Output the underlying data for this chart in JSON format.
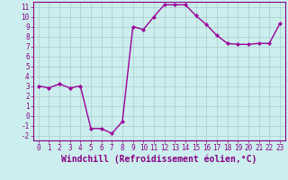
{
  "x": [
    0,
    1,
    2,
    3,
    4,
    5,
    6,
    7,
    8,
    9,
    10,
    11,
    12,
    13,
    14,
    15,
    16,
    17,
    18,
    19,
    20,
    21,
    22,
    23
  ],
  "y": [
    3.0,
    2.8,
    3.2,
    2.8,
    3.0,
    -1.3,
    -1.3,
    -1.8,
    -0.6,
    9.0,
    8.7,
    10.0,
    11.2,
    11.2,
    11.2,
    10.1,
    9.2,
    8.1,
    7.3,
    7.2,
    7.2,
    7.3,
    7.3,
    9.3
  ],
  "line_color": "#990099",
  "marker": "D",
  "marker_size": 2.0,
  "bg_color": "#cceeee",
  "grid_color": "#aacccc",
  "xlabel": "Windchill (Refroidissement éolien,°C)",
  "ylim": [
    -2.5,
    11.5
  ],
  "xlim": [
    -0.5,
    23.5
  ],
  "yticks": [
    -2,
    -1,
    0,
    1,
    2,
    3,
    4,
    5,
    6,
    7,
    8,
    9,
    10,
    11
  ],
  "xticks": [
    0,
    1,
    2,
    3,
    4,
    5,
    6,
    7,
    8,
    9,
    10,
    11,
    12,
    13,
    14,
    15,
    16,
    17,
    18,
    19,
    20,
    21,
    22,
    23
  ],
  "tick_color": "#880088",
  "tick_fontsize": 5.5,
  "xlabel_fontsize": 7.0,
  "line_width": 1.0,
  "spine_color": "#880088"
}
